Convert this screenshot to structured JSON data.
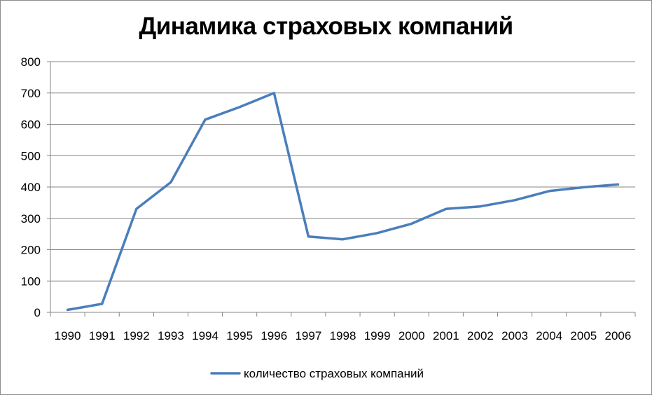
{
  "chart_data": {
    "type": "line",
    "title": "Динамика страховых компаний",
    "xlabel": "",
    "ylabel": "",
    "ylim": [
      0,
      800
    ],
    "yticks": [
      "0",
      "100",
      "200",
      "300",
      "400",
      "500",
      "600",
      "700",
      "800"
    ],
    "categories": [
      "1990",
      "1991",
      "1992",
      "1993",
      "1994",
      "1995",
      "1996",
      "1997",
      "1998",
      "1999",
      "2000",
      "2001",
      "2002",
      "2003",
      "2004",
      "2005",
      "2006"
    ],
    "series": [
      {
        "name": "количество страховых компаний",
        "color": "#4a7ebb",
        "values": [
          8,
          27,
          330,
          415,
          615,
          655,
          700,
          242,
          233,
          253,
          283,
          330,
          338,
          358,
          387,
          399,
          408
        ]
      }
    ],
    "grid": true,
    "legend_position": "bottom"
  }
}
